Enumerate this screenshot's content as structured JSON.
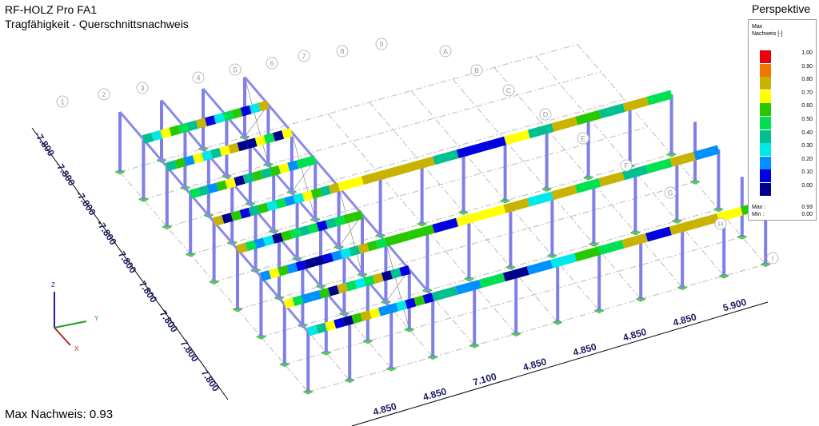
{
  "header": {
    "title": "RF-HOLZ Pro FA1",
    "subtitle": "Tragfähigkeit - Querschnittsnachweis"
  },
  "view_label": "Perspektive",
  "legend": {
    "max_label": "Max",
    "quantity": "Nachweis [-]",
    "levels": [
      {
        "label": "1.00",
        "color": "#e8000b"
      },
      {
        "label": "0.90",
        "color": "#f07800"
      },
      {
        "label": "0.80",
        "color": "#c8b400"
      },
      {
        "label": "0.70",
        "color": "#ffff00"
      },
      {
        "label": "0.60",
        "color": "#28c800"
      },
      {
        "label": "0.50",
        "color": "#00e050"
      },
      {
        "label": "0.40",
        "color": "#00c090"
      },
      {
        "label": "0.30",
        "color": "#00e8e8"
      },
      {
        "label": "0.20",
        "color": "#0090ff"
      },
      {
        "label": "0.10",
        "color": "#0000e0"
      },
      {
        "label": "0.00",
        "color": "#00008c"
      }
    ],
    "max": {
      "label": "Max :",
      "value": "0.93"
    },
    "min": {
      "label": "Min :",
      "value": "0.00"
    }
  },
  "grid_numbers": [
    "1",
    "2",
    "3",
    "4",
    "5",
    "6",
    "7",
    "8",
    "9"
  ],
  "grid_letters": [
    "A",
    "B",
    "C",
    "D",
    "E",
    "F",
    "G",
    "H",
    "I"
  ],
  "dimensions_left": [
    "-7.800",
    "-7.800",
    "-7.800",
    "-7.800",
    "7.800",
    "7.800",
    "7.800",
    "7.800",
    "7.800"
  ],
  "dimensions_bottom": [
    "4.850",
    "4.850",
    "7.100",
    "4.850",
    "4.850",
    "4.850",
    "4.850",
    "5.900"
  ],
  "axes": {
    "z": "Z",
    "y": "Y",
    "x": "X"
  },
  "footer": "Max Nachweis: 0.93"
}
